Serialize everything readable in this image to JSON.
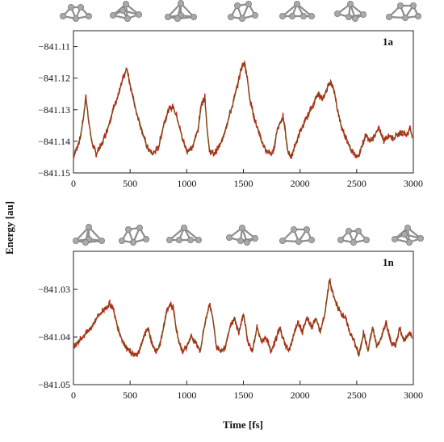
{
  "axes": {
    "shared_ylabel": "Energy [au]",
    "shared_xlabel": "Time [fs]"
  },
  "chart_data": [
    {
      "type": "line",
      "panel_label": "1a",
      "title": "",
      "xlabel": "",
      "ylabel": "Energy [au]",
      "xlim": [
        0,
        3000
      ],
      "ylim": [
        -841.15,
        -841.105
      ],
      "x_ticks": [
        0,
        500,
        1000,
        1500,
        2000,
        2500,
        3000
      ],
      "y_ticks": [
        -841.11,
        -841.12,
        -841.13,
        -841.14,
        -841.15
      ],
      "y_tick_labels": [
        "−841.11",
        "−841.12",
        "−841.13",
        "−841.14",
        "−841.15"
      ],
      "colors": {
        "trace": "#d41a1a",
        "smoothed": "#7a4a14"
      },
      "x": [
        0,
        30,
        60,
        90,
        110,
        130,
        160,
        200,
        250,
        300,
        350,
        400,
        440,
        470,
        500,
        550,
        600,
        650,
        700,
        750,
        800,
        840,
        880,
        920,
        960,
        1000,
        1050,
        1100,
        1130,
        1160,
        1180,
        1200,
        1240,
        1300,
        1350,
        1400,
        1450,
        1480,
        1510,
        1530,
        1560,
        1600,
        1650,
        1700,
        1760,
        1800,
        1850,
        1870,
        1890,
        1920,
        1960,
        2000,
        2040,
        2080,
        2120,
        2160,
        2200,
        2240,
        2270,
        2300,
        2330,
        2370,
        2420,
        2470,
        2510,
        2550,
        2580,
        2620,
        2660,
        2700,
        2740,
        2780,
        2820,
        2860,
        2900,
        2940,
        2970,
        2990
      ],
      "values": [
        -841.145,
        -841.142,
        -841.139,
        -841.132,
        -841.126,
        -841.132,
        -841.14,
        -841.144,
        -841.141,
        -841.136,
        -841.13,
        -841.125,
        -841.12,
        -841.117,
        -841.122,
        -841.13,
        -841.136,
        -841.142,
        -841.144,
        -841.142,
        -841.134,
        -841.13,
        -841.129,
        -841.133,
        -841.139,
        -841.143,
        -841.142,
        -841.136,
        -841.128,
        -841.126,
        -841.136,
        -841.143,
        -841.144,
        -841.141,
        -841.135,
        -841.129,
        -841.122,
        -841.117,
        -841.115,
        -841.119,
        -841.127,
        -841.133,
        -841.139,
        -841.143,
        -841.144,
        -841.136,
        -841.132,
        -841.137,
        -841.143,
        -841.145,
        -841.141,
        -841.137,
        -841.134,
        -841.131,
        -841.128,
        -841.125,
        -841.127,
        -841.123,
        -841.121,
        -841.124,
        -841.13,
        -841.136,
        -841.14,
        -841.144,
        -841.145,
        -841.141,
        -841.138,
        -841.14,
        -841.138,
        -841.136,
        -841.14,
        -841.138,
        -841.139,
        -841.138,
        -841.137,
        -841.138,
        -841.136,
        -841.138
      ]
    },
    {
      "type": "line",
      "panel_label": "1n",
      "title": "",
      "xlabel": "Time [fs]",
      "ylabel": "Energy [au]",
      "xlim": [
        0,
        3000
      ],
      "ylim": [
        -841.05,
        -841.022
      ],
      "x_ticks": [
        0,
        500,
        1000,
        1500,
        2000,
        2500,
        3000
      ],
      "y_ticks": [
        -841.03,
        -841.04,
        -841.05
      ],
      "y_tick_labels": [
        "−841.03",
        "−841.04",
        "−841.05"
      ],
      "colors": {
        "trace": "#d41a1a",
        "smoothed": "#7a4a14"
      },
      "x": [
        0,
        40,
        80,
        120,
        160,
        200,
        240,
        280,
        320,
        350,
        380,
        420,
        460,
        500,
        540,
        580,
        620,
        660,
        700,
        740,
        780,
        820,
        850,
        880,
        920,
        960,
        1000,
        1040,
        1080,
        1120,
        1160,
        1200,
        1230,
        1260,
        1300,
        1340,
        1380,
        1420,
        1460,
        1500,
        1540,
        1580,
        1620,
        1660,
        1700,
        1740,
        1780,
        1820,
        1860,
        1900,
        1940,
        1980,
        2020,
        2060,
        2100,
        2140,
        2180,
        2220,
        2260,
        2290,
        2320,
        2360,
        2400,
        2440,
        2480,
        2520,
        2560,
        2600,
        2640,
        2680,
        2720,
        2760,
        2800,
        2840,
        2880,
        2920,
        2960,
        2990
      ],
      "values": [
        -841.042,
        -841.041,
        -841.04,
        -841.039,
        -841.038,
        -841.036,
        -841.035,
        -841.034,
        -841.033,
        -841.034,
        -841.037,
        -841.04,
        -841.042,
        -841.043,
        -841.044,
        -841.043,
        -841.04,
        -841.038,
        -841.042,
        -841.043,
        -841.04,
        -841.035,
        -841.033,
        -841.034,
        -841.04,
        -841.043,
        -841.042,
        -841.04,
        -841.041,
        -841.043,
        -841.037,
        -841.033,
        -841.036,
        -841.042,
        -841.043,
        -841.042,
        -841.038,
        -841.036,
        -841.039,
        -841.035,
        -841.041,
        -841.043,
        -841.038,
        -841.041,
        -841.04,
        -841.043,
        -841.041,
        -841.038,
        -841.041,
        -841.043,
        -841.04,
        -841.037,
        -841.039,
        -841.036,
        -841.038,
        -841.036,
        -841.039,
        -841.035,
        -841.028,
        -841.031,
        -841.033,
        -841.035,
        -841.036,
        -841.039,
        -841.041,
        -841.044,
        -841.039,
        -841.043,
        -841.038,
        -841.042,
        -841.04,
        -841.037,
        -841.041,
        -841.042,
        -841.038,
        -841.041,
        -841.039,
        -841.04
      ]
    }
  ]
}
